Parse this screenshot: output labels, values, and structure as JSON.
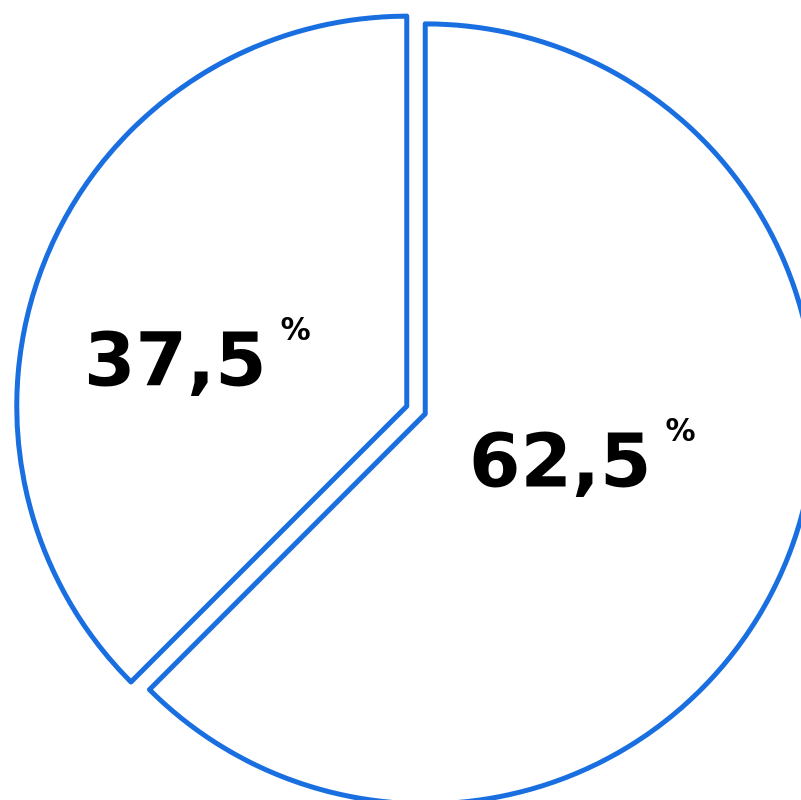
{
  "chart_data": {
    "type": "pie",
    "slices": [
      {
        "value": 62.5,
        "label": "62,5",
        "unit": "%"
      },
      {
        "value": 37.5,
        "label": "37,5",
        "unit": "%"
      }
    ],
    "stroke_color": "#1a6fe0",
    "fill_color": "#ffffff",
    "text_color": "#000000",
    "exploded": true,
    "legend": "none"
  }
}
